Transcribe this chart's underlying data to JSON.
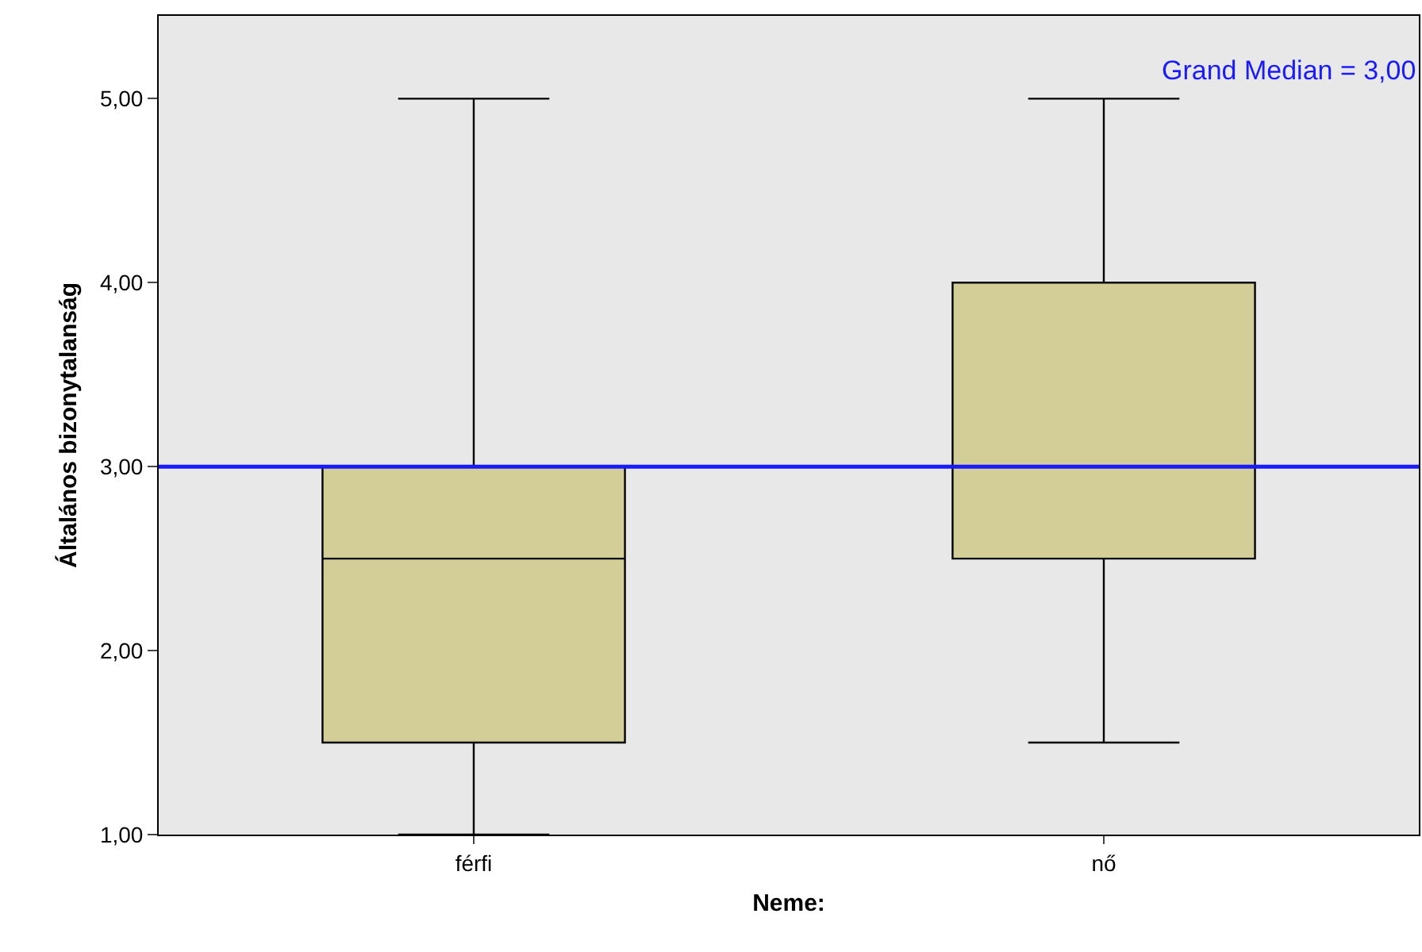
{
  "chart_data": {
    "type": "box",
    "xlabel": "Neme:",
    "ylabel": "Általános bizonytalanság",
    "categories": [
      "férfi",
      "nő"
    ],
    "boxes": [
      {
        "low": 1.0,
        "q1": 1.5,
        "median": 2.5,
        "q3": 3.0,
        "high": 5.0
      },
      {
        "low": 1.5,
        "q1": 2.5,
        "median": 3.0,
        "q3": 4.0,
        "high": 5.0
      }
    ],
    "color": "#d3cd98",
    "ylim": [
      1.0,
      5.45
    ],
    "yticks": [
      {
        "value": 1,
        "label": "1,00"
      },
      {
        "value": 2,
        "label": "2,00"
      },
      {
        "value": 3,
        "label": "3,00"
      },
      {
        "value": 4,
        "label": "4,00"
      },
      {
        "value": 5,
        "label": "5,00"
      }
    ],
    "ref_lines": [
      {
        "axis": "y",
        "value": 3.0,
        "label": "Grand Median = 3,00",
        "color": "#1a1aff"
      }
    ],
    "grid": false
  }
}
